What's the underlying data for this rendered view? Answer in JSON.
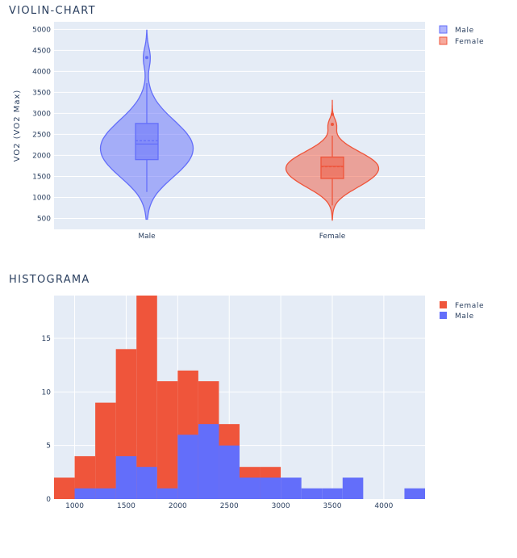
{
  "chart_data": [
    {
      "type": "violin",
      "title": "VIOLIN-CHART",
      "xlabel": "",
      "ylabel": "VO2 (VO2 Max)",
      "categories": [
        "Male",
        "Female"
      ],
      "yticks": [
        500,
        1000,
        1500,
        2000,
        2500,
        3000,
        3500,
        4000,
        4500,
        5000
      ],
      "ylim": [
        240,
        5180
      ],
      "grid": true,
      "legend": {
        "position": "top-right",
        "entries": [
          "Male",
          "Female"
        ]
      },
      "series": [
        {
          "name": "Male",
          "color": "#636efa",
          "kde_min": 480,
          "kde_max": 4980,
          "box": {
            "q1": 1900,
            "median": 2270,
            "mean": 2350,
            "q3": 2760,
            "whisker_low": 1130,
            "whisker_high": 3720
          },
          "outliers": [
            4330
          ]
        },
        {
          "name": "Female",
          "color": "#ef553b",
          "kde_min": 460,
          "kde_max": 3320,
          "box": {
            "q1": 1450,
            "median": 1740,
            "mean": 1730,
            "q3": 1960,
            "whisker_low": 810,
            "whisker_high": 2470
          },
          "outliers": [
            2740,
            2980
          ]
        }
      ]
    },
    {
      "type": "histogram",
      "title": "HISTOGRAMA",
      "xlabel": "",
      "ylabel": "",
      "barmode": "overlay",
      "xlim": [
        800,
        4400
      ],
      "ylim": [
        0,
        19
      ],
      "xticks": [
        1000,
        1500,
        2000,
        2500,
        3000,
        3500,
        4000
      ],
      "yticks": [
        0,
        5,
        10,
        15
      ],
      "bin_width": 200,
      "grid": true,
      "legend": {
        "position": "top-right",
        "entries": [
          "Female",
          "Male"
        ]
      },
      "series": [
        {
          "name": "Female",
          "color": "#ef553b",
          "bin_starts": [
            800,
            1000,
            1200,
            1400,
            1600,
            1800,
            2000,
            2200,
            2400,
            2600,
            2800
          ],
          "values": [
            2,
            4,
            9,
            14,
            19,
            11,
            12,
            11,
            7,
            3,
            3
          ]
        },
        {
          "name": "Male",
          "color": "#636efa",
          "bin_starts": [
            1000,
            1200,
            1400,
            1600,
            1800,
            2000,
            2200,
            2400,
            2600,
            2800,
            3000,
            3200,
            3400,
            3600,
            3800,
            4000,
            4200
          ],
          "values": [
            1,
            1,
            4,
            3,
            1,
            6,
            7,
            5,
            2,
            2,
            2,
            1,
            1,
            2,
            0,
            0,
            1
          ]
        }
      ]
    }
  ]
}
